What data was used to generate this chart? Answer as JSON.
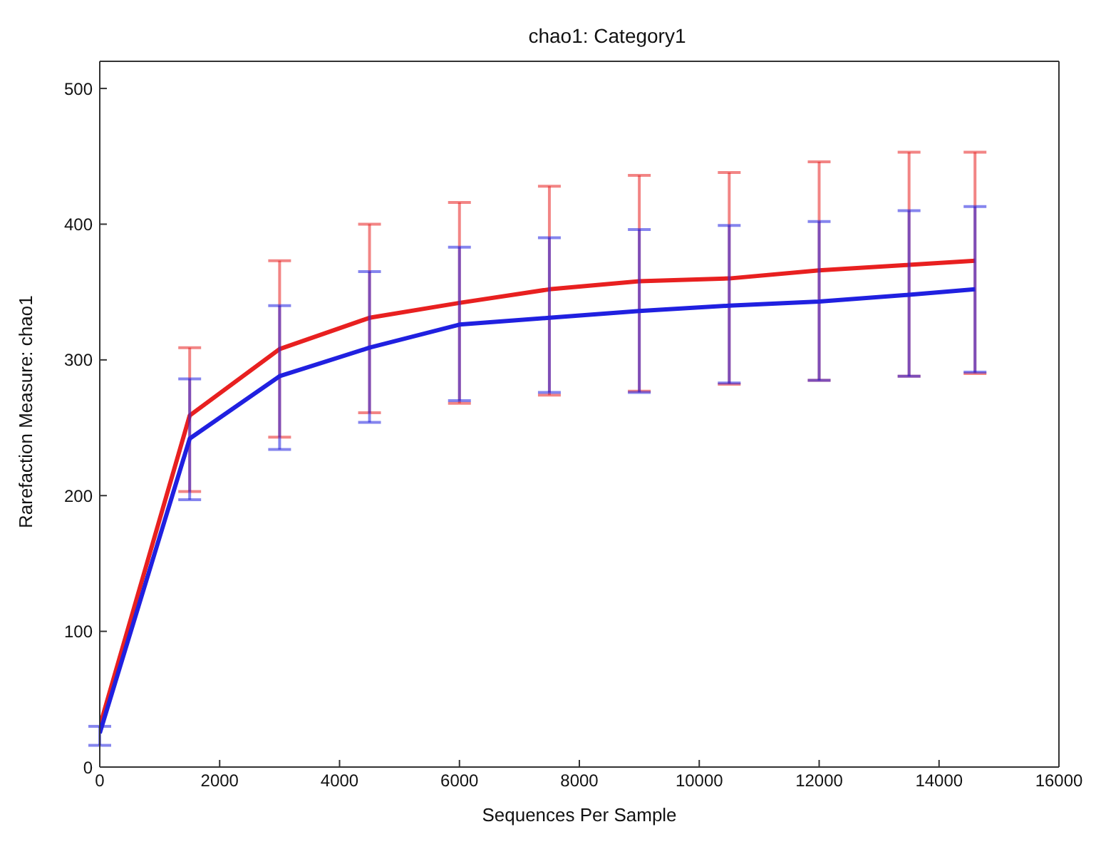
{
  "chart_data": {
    "type": "line",
    "title": "chao1: Category1",
    "xlabel": "Sequences Per Sample",
    "ylabel": "Rarefaction Measure: chao1",
    "x": [
      0,
      1500,
      3000,
      4500,
      6000,
      7500,
      9000,
      10500,
      12000,
      13500,
      14600
    ],
    "xlim": [
      0,
      16000
    ],
    "xticks": [
      0,
      2000,
      4000,
      6000,
      8000,
      10000,
      12000,
      14000,
      16000
    ],
    "ylim": [
      0,
      520
    ],
    "yticks": [
      0,
      100,
      200,
      300,
      400,
      500
    ],
    "grid": false,
    "legend": false,
    "marker": "none",
    "line_style": "solid",
    "series": [
      {
        "color": "#e82020",
        "values": [
          30,
          259,
          308,
          331,
          342,
          352,
          358,
          360,
          366,
          370,
          373
        ],
        "errors": [
          null,
          [
            203,
            309
          ],
          [
            243,
            373
          ],
          [
            261,
            400
          ],
          [
            268,
            416
          ],
          [
            274,
            428
          ],
          [
            277,
            436
          ],
          [
            282,
            438
          ],
          [
            285,
            446
          ],
          [
            288,
            453
          ],
          [
            290,
            453
          ]
        ]
      },
      {
        "color": "#2020e0",
        "values": [
          25,
          242,
          288,
          309,
          326,
          331,
          336,
          340,
          343,
          348,
          352
        ],
        "errors": [
          [
            16,
            30
          ],
          [
            197,
            286
          ],
          [
            234,
            340
          ],
          [
            254,
            365
          ],
          [
            270,
            383
          ],
          [
            276,
            390
          ],
          [
            276,
            396
          ],
          [
            283,
            399
          ],
          [
            285,
            402
          ],
          [
            288,
            410
          ],
          [
            291,
            413
          ]
        ]
      }
    ]
  }
}
